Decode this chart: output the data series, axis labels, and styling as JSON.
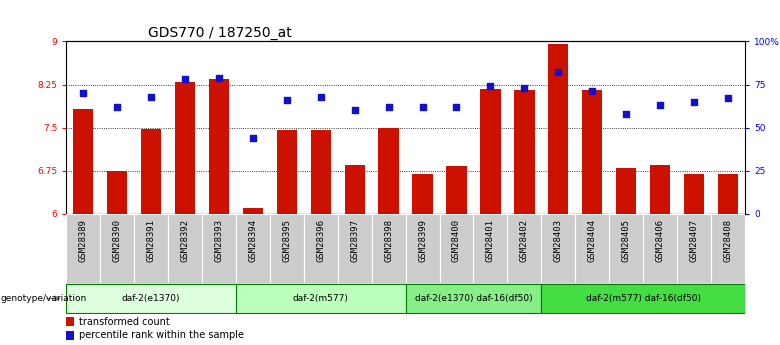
{
  "title": "GDS770 / 187250_at",
  "samples": [
    "GSM28389",
    "GSM28390",
    "GSM28391",
    "GSM28392",
    "GSM28393",
    "GSM28394",
    "GSM28395",
    "GSM28396",
    "GSM28397",
    "GSM28398",
    "GSM28399",
    "GSM28400",
    "GSM28401",
    "GSM28402",
    "GSM28403",
    "GSM28404",
    "GSM28405",
    "GSM28406",
    "GSM28407",
    "GSM28408"
  ],
  "bar_values": [
    7.82,
    6.75,
    7.47,
    8.3,
    8.35,
    6.1,
    7.46,
    7.46,
    6.85,
    7.5,
    6.7,
    6.83,
    8.18,
    8.15,
    8.95,
    8.15,
    6.8,
    6.85,
    6.7,
    6.7
  ],
  "dot_values": [
    70,
    62,
    68,
    78,
    79,
    44,
    66,
    68,
    60,
    62,
    62,
    62,
    74,
    73,
    82,
    71,
    58,
    63,
    65,
    67
  ],
  "ylim_left": [
    6,
    9
  ],
  "ylim_right": [
    0,
    100
  ],
  "yticks_left": [
    6,
    6.75,
    7.5,
    8.25,
    9
  ],
  "yticks_right": [
    0,
    25,
    50,
    75,
    100
  ],
  "ytick_labels_left": [
    "6",
    "6.75",
    "7.5",
    "8.25",
    "9"
  ],
  "ytick_labels_right": [
    "0",
    "25",
    "50",
    "75",
    "100%"
  ],
  "hlines": [
    6.75,
    7.5,
    8.25
  ],
  "bar_color": "#cc1100",
  "dot_color": "#1111cc",
  "genotype_groups": [
    {
      "label": "daf-2(e1370)",
      "start": 0,
      "end": 5,
      "color": "#ddffdd"
    },
    {
      "label": "daf-2(m577)",
      "start": 5,
      "end": 10,
      "color": "#bbffbb"
    },
    {
      "label": "daf-2(e1370) daf-16(df50)",
      "start": 10,
      "end": 14,
      "color": "#88ee88"
    },
    {
      "label": "daf-2(m577) daf-16(df50)",
      "start": 14,
      "end": 20,
      "color": "#44dd44"
    }
  ],
  "legend_items": [
    {
      "label": "transformed count",
      "color": "#cc1100"
    },
    {
      "label": "percentile rank within the sample",
      "color": "#1111cc"
    }
  ],
  "genotype_label": "genotype/variation",
  "title_fontsize": 10,
  "tick_fontsize": 6.5,
  "label_fontsize": 7.5
}
